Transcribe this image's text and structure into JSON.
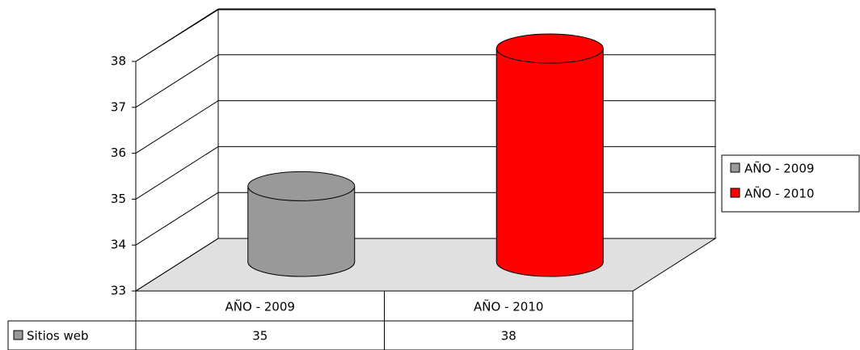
{
  "chart_data": {
    "type": "bar",
    "categories": [
      "AÑO - 2009",
      "AÑO - 2010"
    ],
    "series": [
      {
        "name": "Sitios web",
        "values": [
          35,
          38
        ],
        "colors": [
          "#999999",
          "#ff0000"
        ]
      }
    ],
    "ylim": [
      33,
      38
    ],
    "yticks": [
      33,
      34,
      35,
      36,
      37,
      38
    ],
    "grid": true,
    "legend": "right"
  }
}
